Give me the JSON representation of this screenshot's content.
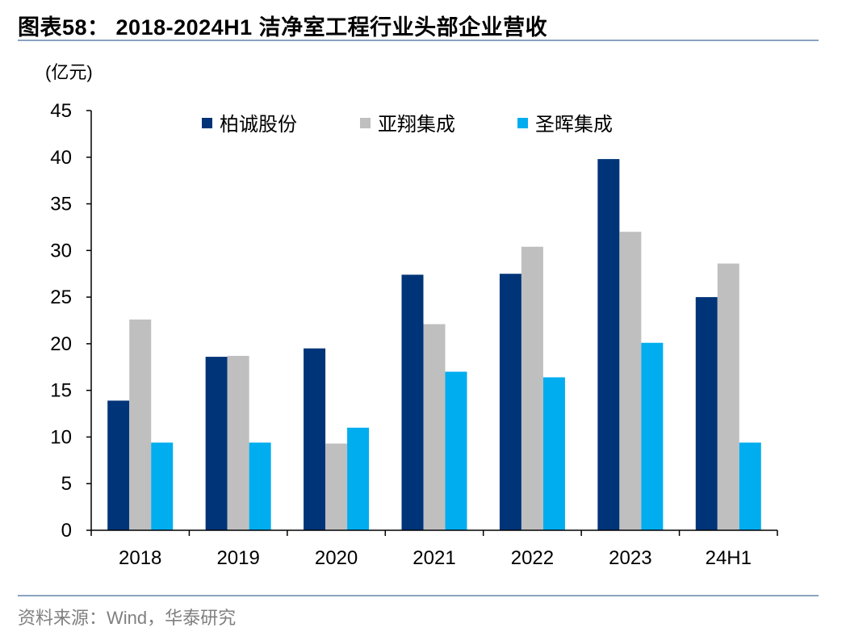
{
  "title": "图表58：  2018-2024H1 洁净室工程行业头部企业营收",
  "unit_label": "(亿元)",
  "source": "资料来源：Wind，华泰研究",
  "chart_data": {
    "type": "bar",
    "title": "2018-2024H1 洁净室工程行业头部企业营收",
    "ylabel": "(亿元)",
    "xlabel": "",
    "categories": [
      "2018",
      "2019",
      "2020",
      "2021",
      "2022",
      "2023",
      "24H1"
    ],
    "ylim": [
      0,
      45
    ],
    "yticks": [
      0,
      5,
      10,
      15,
      20,
      25,
      30,
      35,
      40,
      45
    ],
    "grid": false,
    "legend_position": "top",
    "series": [
      {
        "name": "柏诚股份",
        "color": "#003478",
        "values": [
          13.9,
          18.6,
          19.5,
          27.4,
          27.5,
          39.8,
          25.0
        ]
      },
      {
        "name": "亚翔集成",
        "color": "#bfbfbf",
        "values": [
          22.6,
          18.7,
          9.3,
          22.1,
          30.4,
          32.0,
          28.6
        ]
      },
      {
        "name": "圣晖集成",
        "color": "#00adef",
        "values": [
          9.4,
          9.4,
          11.0,
          17.0,
          16.4,
          20.1,
          9.4
        ]
      }
    ]
  }
}
